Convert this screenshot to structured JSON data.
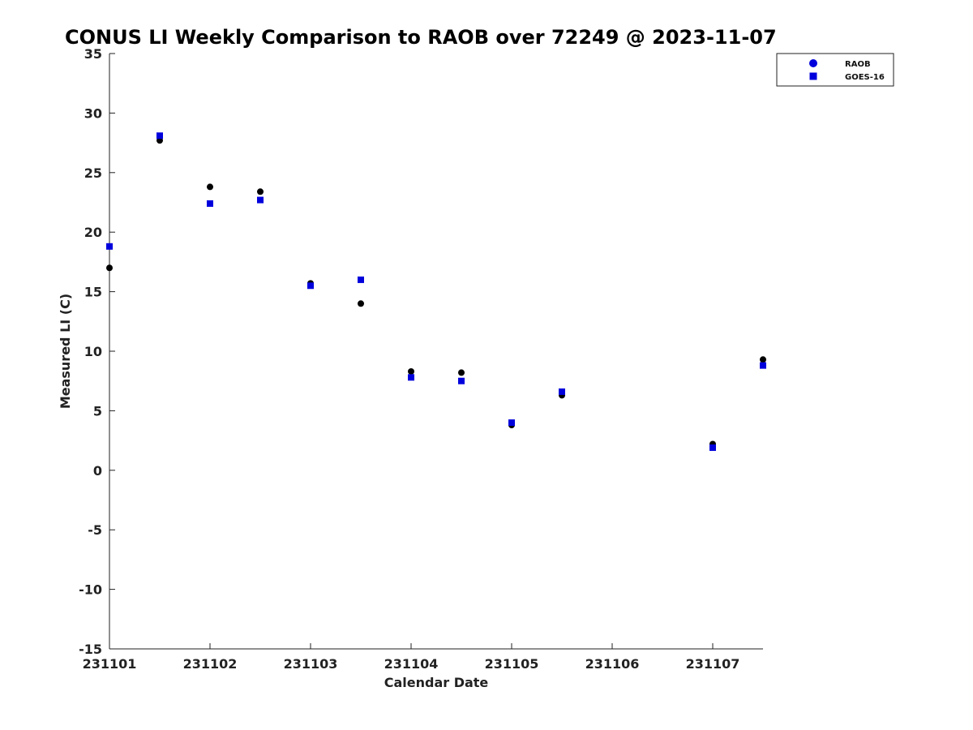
{
  "chart_data": {
    "type": "scatter",
    "title": "CONUS LI Weekly Comparison to RAOB over 72249 @ 2023-11-07",
    "xlabel": "Calendar Date",
    "ylabel": "Measured LI (C)",
    "xlim": [
      231101,
      231107.5
    ],
    "ylim": [
      -15,
      35
    ],
    "x_ticks": [
      231101,
      231102,
      231103,
      231104,
      231105,
      231106,
      231107
    ],
    "x_tick_labels": [
      "231101",
      "231102",
      "231103",
      "231104",
      "231105",
      "231106",
      "231107"
    ],
    "y_ticks": [
      -15,
      -10,
      -5,
      0,
      5,
      10,
      15,
      20,
      25,
      30,
      35
    ],
    "y_tick_labels": [
      "-15",
      "-10",
      "-5",
      "0",
      "5",
      "10",
      "15",
      "20",
      "25",
      "30",
      "35"
    ],
    "grid": false,
    "legend_position": "top-right",
    "series": [
      {
        "name": "RAOB",
        "marker": "circle",
        "color": "#000000",
        "legend_color": "#0000dd",
        "x": [
          231101,
          231101.5,
          231102,
          231102.5,
          231103,
          231103.5,
          231104,
          231104.5,
          231105,
          231105.5,
          231107,
          231107.5
        ],
        "y": [
          17.0,
          27.7,
          23.8,
          23.4,
          15.7,
          14.0,
          8.3,
          8.2,
          3.8,
          6.3,
          2.2,
          9.3
        ]
      },
      {
        "name": "GOES-16",
        "marker": "square",
        "color": "#0000dd",
        "legend_color": "#0000dd",
        "x": [
          231101,
          231101.5,
          231102,
          231102.5,
          231103,
          231103.5,
          231104,
          231104.5,
          231105,
          231105.5,
          231107,
          231107.5
        ],
        "y": [
          18.8,
          28.1,
          22.4,
          22.7,
          15.5,
          16.0,
          7.8,
          7.5,
          4.0,
          6.6,
          1.9,
          8.8
        ]
      }
    ]
  }
}
